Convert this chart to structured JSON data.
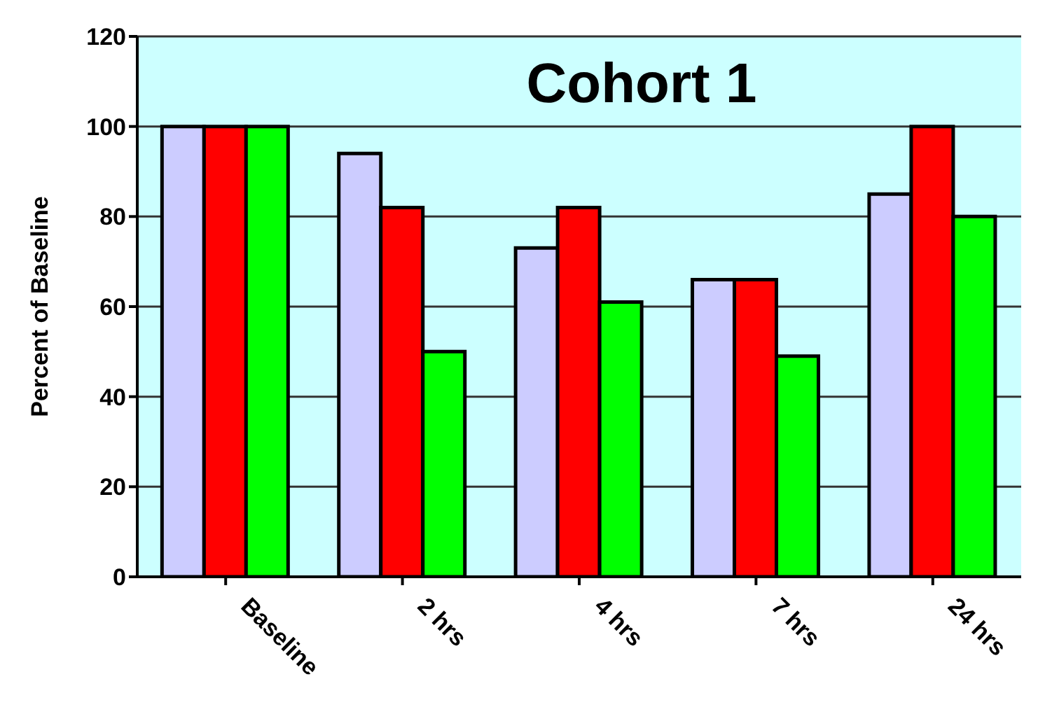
{
  "chart_data": {
    "type": "bar",
    "title": "Cohort 1",
    "ylabel": "Percent of Baseline",
    "categories": [
      "Baseline",
      "2 hrs",
      "4 hrs",
      "7 hrs",
      "24 hrs"
    ],
    "series": [
      {
        "color": "#ccccff",
        "values": [
          100,
          94,
          73,
          66,
          85
        ]
      },
      {
        "color": "#ff0000",
        "values": [
          100,
          82,
          82,
          66,
          100
        ]
      },
      {
        "color": "#00ff00",
        "values": [
          100,
          50,
          61,
          49,
          80
        ]
      }
    ],
    "ylim": [
      0,
      120
    ],
    "yticks": [
      0,
      20,
      40,
      60,
      80,
      100,
      120
    ],
    "grid": "y",
    "legend": false
  }
}
